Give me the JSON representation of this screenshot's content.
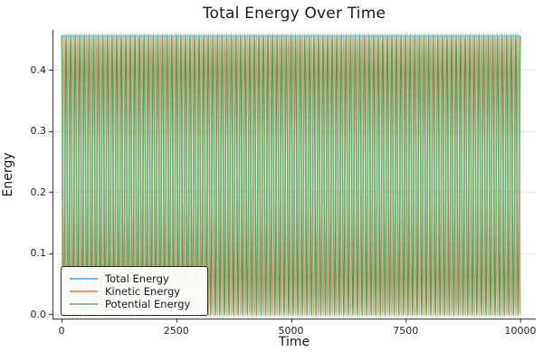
{
  "chart_data": {
    "type": "line",
    "title": "Total Energy Over Time",
    "xlabel": "Time",
    "ylabel": "Energy",
    "x_range": [
      0,
      10000
    ],
    "xticks": [
      0,
      2500,
      5000,
      7500,
      10000
    ],
    "xtick_labels": [
      "0",
      "2500",
      "5000",
      "7500",
      "10000"
    ],
    "ytick_values": [
      0.0,
      0.1,
      0.2,
      0.3,
      0.4
    ],
    "ytick_labels": [
      "0.0",
      "0.1",
      "0.2",
      "0.3",
      "0.4"
    ],
    "ylim": [
      -0.007,
      0.465
    ],
    "grid": true,
    "grid_color": "#e7e7e7",
    "spine_color": "#1f1f1f",
    "background_color": "#ffffff",
    "legend_position": "lower left",
    "series": [
      {
        "name": "Total Energy",
        "kind": "constant",
        "value": 0.455,
        "legend_color": "#6ec0ea",
        "plot_color": "#6ec0ea",
        "line_width": 1.6
      },
      {
        "name": "Kinetic Energy",
        "kind": "oscillating",
        "min": 0.0,
        "max": 0.455,
        "cycles": 100,
        "phase_deg": 0,
        "legend_color": "#e9967a",
        "plot_color": "#e2906b",
        "line_width": 1.2
      },
      {
        "name": "Potential Energy",
        "kind": "oscillating",
        "min": 0.0,
        "max": 0.455,
        "cycles": 100,
        "phase_deg": 180,
        "legend_color": "#8fbc8f",
        "plot_color": "#35a04a",
        "line_width": 1.2
      }
    ],
    "description": "Kinetic and Potential Energy oscillate in antiphase between 0 and 0.455 over ~100 cycles across t=0..10000; their sum equals the constant Total Energy of 0.455."
  }
}
